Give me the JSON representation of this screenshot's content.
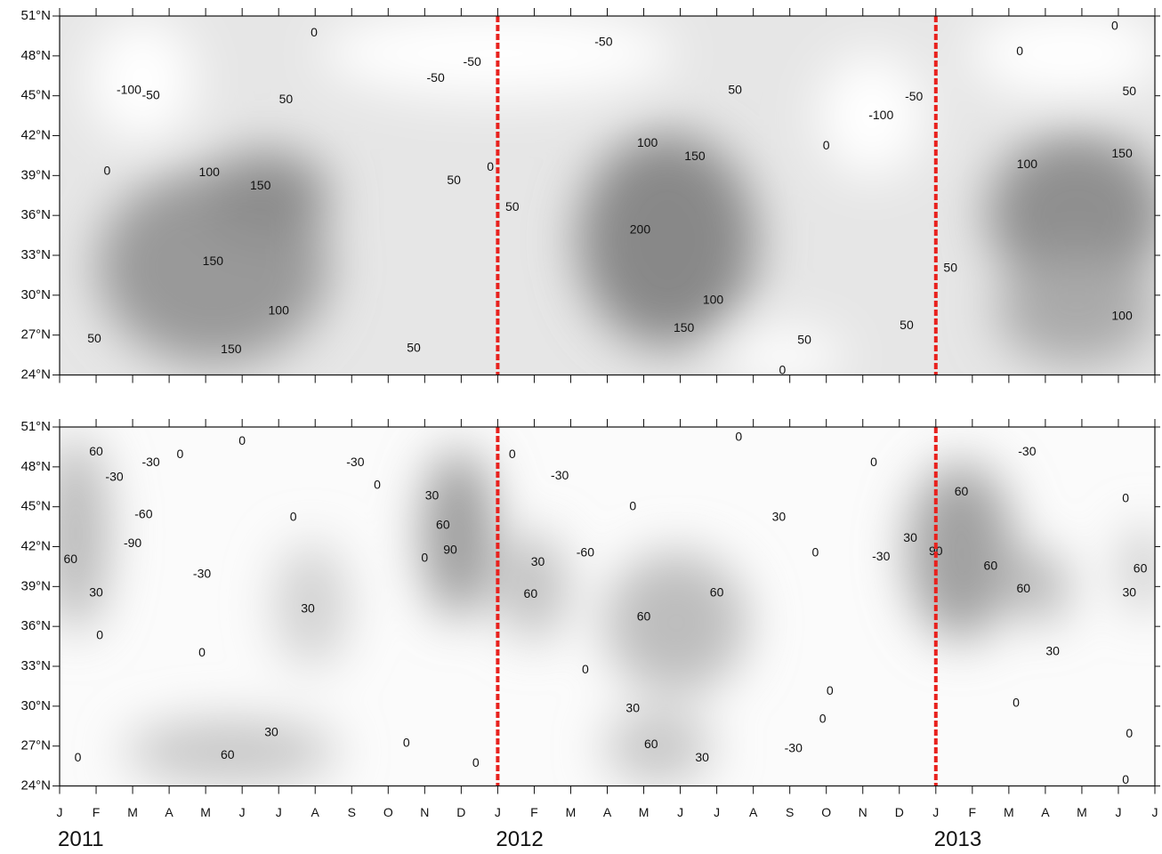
{
  "chart_data": [
    {
      "type": "contour",
      "xlim": [
        0,
        30
      ],
      "xticks": [
        0,
        1,
        2,
        3,
        4,
        5,
        6,
        7,
        8,
        9,
        10,
        11,
        12,
        13,
        14,
        15,
        16,
        17,
        18,
        19,
        20,
        21,
        22,
        23,
        24,
        25,
        26,
        27,
        28,
        29,
        30
      ],
      "ylim": [
        24,
        51
      ],
      "yticks": [
        {
          "value": 24,
          "label": "24°N"
        },
        {
          "value": 27,
          "label": "27°N"
        },
        {
          "value": 30,
          "label": "30°N"
        },
        {
          "value": 33,
          "label": "33°N"
        },
        {
          "value": 36,
          "label": "36°N"
        },
        {
          "value": 39,
          "label": "39°N"
        },
        {
          "value": 42,
          "label": "42°N"
        },
        {
          "value": 45,
          "label": "45°N"
        },
        {
          "value": 48,
          "label": "48°N"
        },
        {
          "value": 51,
          "label": "51°N"
        }
      ],
      "vlines": [
        12,
        24
      ],
      "vline_color": "#e8221e",
      "contour_labels": [
        {
          "x": 1.9,
          "y": 45.4,
          "value": -100
        },
        {
          "x": 2.5,
          "y": 45.0,
          "value": -50
        },
        {
          "x": 6.2,
          "y": 44.7,
          "value": 50
        },
        {
          "x": 6.97,
          "y": 49.7,
          "value": 0
        },
        {
          "x": 1.3,
          "y": 39.3,
          "value": 0
        },
        {
          "x": 4.1,
          "y": 39.2,
          "value": 100
        },
        {
          "x": 5.5,
          "y": 38.2,
          "value": 150
        },
        {
          "x": 4.2,
          "y": 32.5,
          "value": 150
        },
        {
          "x": 6.0,
          "y": 28.8,
          "value": 100
        },
        {
          "x": 0.95,
          "y": 26.7,
          "value": 50
        },
        {
          "x": 4.7,
          "y": 25.9,
          "value": 150
        },
        {
          "x": 9.7,
          "y": 26.0,
          "value": 50
        },
        {
          "x": 10.8,
          "y": 38.6,
          "value": 50
        },
        {
          "x": 11.8,
          "y": 39.6,
          "value": 0
        },
        {
          "x": 10.3,
          "y": 46.3,
          "value": -50
        },
        {
          "x": 11.3,
          "y": 47.5,
          "value": -50
        },
        {
          "x": 14.9,
          "y": 49.0,
          "value": -50
        },
        {
          "x": 12.4,
          "y": 36.6,
          "value": 50
        },
        {
          "x": 18.5,
          "y": 45.4,
          "value": 50
        },
        {
          "x": 16.1,
          "y": 41.4,
          "value": 100
        },
        {
          "x": 17.4,
          "y": 40.4,
          "value": 150
        },
        {
          "x": 15.9,
          "y": 34.9,
          "value": 200
        },
        {
          "x": 17.9,
          "y": 29.6,
          "value": 100
        },
        {
          "x": 17.1,
          "y": 27.5,
          "value": 150
        },
        {
          "x": 20.4,
          "y": 26.6,
          "value": 50
        },
        {
          "x": 19.8,
          "y": 24.3,
          "value": 0
        },
        {
          "x": 21.0,
          "y": 41.2,
          "value": 0
        },
        {
          "x": 22.5,
          "y": 43.5,
          "value": -100
        },
        {
          "x": 23.4,
          "y": 44.9,
          "value": -50
        },
        {
          "x": 23.2,
          "y": 27.7,
          "value": 50
        },
        {
          "x": 26.3,
          "y": 48.3,
          "value": 0
        },
        {
          "x": 28.9,
          "y": 50.2,
          "value": 0
        },
        {
          "x": 29.3,
          "y": 45.3,
          "value": 50
        },
        {
          "x": 26.5,
          "y": 39.8,
          "value": 100
        },
        {
          "x": 29.1,
          "y": 40.6,
          "value": 150
        },
        {
          "x": 24.4,
          "y": 32.0,
          "value": 50
        },
        {
          "x": 29.1,
          "y": 28.4,
          "value": 100
        }
      ]
    },
    {
      "type": "contour",
      "xlim": [
        0,
        30
      ],
      "xticks": [
        {
          "value": 0,
          "label": "J"
        },
        {
          "value": 1,
          "label": "F"
        },
        {
          "value": 2,
          "label": "M"
        },
        {
          "value": 3,
          "label": "A"
        },
        {
          "value": 4,
          "label": "M"
        },
        {
          "value": 5,
          "label": "J"
        },
        {
          "value": 6,
          "label": "J"
        },
        {
          "value": 7,
          "label": "A"
        },
        {
          "value": 8,
          "label": "S"
        },
        {
          "value": 9,
          "label": "O"
        },
        {
          "value": 10,
          "label": "N"
        },
        {
          "value": 11,
          "label": "D"
        },
        {
          "value": 12,
          "label": "J"
        },
        {
          "value": 13,
          "label": "F"
        },
        {
          "value": 14,
          "label": "M"
        },
        {
          "value": 15,
          "label": "A"
        },
        {
          "value": 16,
          "label": "M"
        },
        {
          "value": 17,
          "label": "J"
        },
        {
          "value": 18,
          "label": "J"
        },
        {
          "value": 19,
          "label": "A"
        },
        {
          "value": 20,
          "label": "S"
        },
        {
          "value": 21,
          "label": "O"
        },
        {
          "value": 22,
          "label": "N"
        },
        {
          "value": 23,
          "label": "D"
        },
        {
          "value": 24,
          "label": "J"
        },
        {
          "value": 25,
          "label": "F"
        },
        {
          "value": 26,
          "label": "M"
        },
        {
          "value": 27,
          "label": "A"
        },
        {
          "value": 28,
          "label": "M"
        },
        {
          "value": 29,
          "label": "J"
        },
        {
          "value": 30,
          "label": "J"
        }
      ],
      "ylim": [
        24,
        51
      ],
      "yticks": [
        {
          "value": 24,
          "label": "24°N"
        },
        {
          "value": 27,
          "label": "27°N"
        },
        {
          "value": 30,
          "label": "30°N"
        },
        {
          "value": 33,
          "label": "33°N"
        },
        {
          "value": 36,
          "label": "36°N"
        },
        {
          "value": 39,
          "label": "39°N"
        },
        {
          "value": 42,
          "label": "42°N"
        },
        {
          "value": 45,
          "label": "45°N"
        },
        {
          "value": 48,
          "label": "48°N"
        },
        {
          "value": 51,
          "label": "51°N"
        }
      ],
      "vlines": [
        12,
        24
      ],
      "vline_color": "#e8221e",
      "year_labels": [
        {
          "x": 0,
          "label": "2011"
        },
        {
          "x": 12,
          "label": "2012"
        },
        {
          "x": 24,
          "label": "2013"
        }
      ],
      "contour_labels": [
        {
          "x": 1.0,
          "y": 49.1,
          "value": 60
        },
        {
          "x": 1.5,
          "y": 47.2,
          "value": -30
        },
        {
          "x": 2.5,
          "y": 48.3,
          "value": -30
        },
        {
          "x": 3.3,
          "y": 48.9,
          "value": 0
        },
        {
          "x": 5.0,
          "y": 49.9,
          "value": 0
        },
        {
          "x": 2.3,
          "y": 44.4,
          "value": -60
        },
        {
          "x": 2.0,
          "y": 42.2,
          "value": -90
        },
        {
          "x": 0.3,
          "y": 41.0,
          "value": 60
        },
        {
          "x": 1.0,
          "y": 38.5,
          "value": 30
        },
        {
          "x": 1.1,
          "y": 35.3,
          "value": 0
        },
        {
          "x": 3.9,
          "y": 39.9,
          "value": -30
        },
        {
          "x": 3.9,
          "y": 34.0,
          "value": 0
        },
        {
          "x": 6.4,
          "y": 44.2,
          "value": 0
        },
        {
          "x": 6.8,
          "y": 37.3,
          "value": 30
        },
        {
          "x": 8.1,
          "y": 48.3,
          "value": -30
        },
        {
          "x": 8.7,
          "y": 46.6,
          "value": 0
        },
        {
          "x": 10.2,
          "y": 45.8,
          "value": 30
        },
        {
          "x": 10.5,
          "y": 43.6,
          "value": 60
        },
        {
          "x": 10.7,
          "y": 41.7,
          "value": 90
        },
        {
          "x": 10.0,
          "y": 41.1,
          "value": 0
        },
        {
          "x": 5.8,
          "y": 28.0,
          "value": 30
        },
        {
          "x": 4.6,
          "y": 26.3,
          "value": 60
        },
        {
          "x": 9.5,
          "y": 27.2,
          "value": 0
        },
        {
          "x": 11.4,
          "y": 25.7,
          "value": 0
        },
        {
          "x": 0.5,
          "y": 26.1,
          "value": 0
        },
        {
          "x": 12.4,
          "y": 48.9,
          "value": 0
        },
        {
          "x": 13.7,
          "y": 47.3,
          "value": -30
        },
        {
          "x": 13.1,
          "y": 40.8,
          "value": 30
        },
        {
          "x": 12.9,
          "y": 38.4,
          "value": 60
        },
        {
          "x": 14.4,
          "y": 41.5,
          "value": -60
        },
        {
          "x": 15.7,
          "y": 45.0,
          "value": 0
        },
        {
          "x": 14.4,
          "y": 32.7,
          "value": 0
        },
        {
          "x": 16.0,
          "y": 36.7,
          "value": 60
        },
        {
          "x": 18.0,
          "y": 38.5,
          "value": 60
        },
        {
          "x": 15.7,
          "y": 29.8,
          "value": 30
        },
        {
          "x": 16.2,
          "y": 27.1,
          "value": 60
        },
        {
          "x": 17.6,
          "y": 26.1,
          "value": 30
        },
        {
          "x": 18.6,
          "y": 50.2,
          "value": 0
        },
        {
          "x": 19.7,
          "y": 44.2,
          "value": 30
        },
        {
          "x": 20.7,
          "y": 41.5,
          "value": 0
        },
        {
          "x": 22.5,
          "y": 41.2,
          "value": -30
        },
        {
          "x": 23.3,
          "y": 42.6,
          "value": 30
        },
        {
          "x": 22.3,
          "y": 48.3,
          "value": 0
        },
        {
          "x": 21.1,
          "y": 31.1,
          "value": 0
        },
        {
          "x": 20.9,
          "y": 29.0,
          "value": 0
        },
        {
          "x": 20.1,
          "y": 26.8,
          "value": -30
        },
        {
          "x": 24.0,
          "y": 41.6,
          "value": 90
        },
        {
          "x": 24.7,
          "y": 46.1,
          "value": 60
        },
        {
          "x": 25.5,
          "y": 40.5,
          "value": 60
        },
        {
          "x": 26.4,
          "y": 38.8,
          "value": 60
        },
        {
          "x": 27.2,
          "y": 34.1,
          "value": 30
        },
        {
          "x": 26.5,
          "y": 49.1,
          "value": -30
        },
        {
          "x": 29.2,
          "y": 45.6,
          "value": 0
        },
        {
          "x": 29.6,
          "y": 40.3,
          "value": 60
        },
        {
          "x": 29.3,
          "y": 38.5,
          "value": 30
        },
        {
          "x": 26.2,
          "y": 30.2,
          "value": 0
        },
        {
          "x": 29.3,
          "y": 27.9,
          "value": 0
        },
        {
          "x": 29.2,
          "y": 24.4,
          "value": 0
        }
      ]
    }
  ]
}
